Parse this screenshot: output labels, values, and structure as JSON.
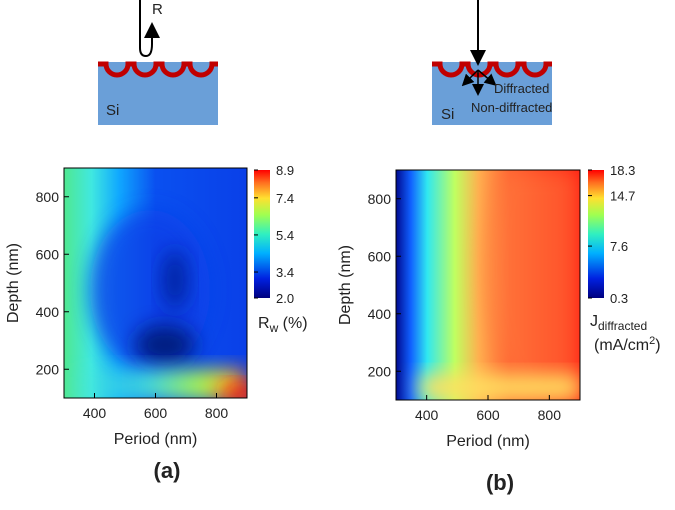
{
  "chart_data": [
    {
      "type": "contour",
      "panel_label": "(a)",
      "xlabel": "Period (nm)",
      "ylabel": "Depth (nm)",
      "xlim": [
        300,
        900
      ],
      "ylim": [
        100,
        900
      ],
      "xticks": [
        400,
        600,
        800
      ],
      "yticks": [
        200,
        400,
        600,
        800
      ],
      "clim": [
        2.0,
        8.9
      ],
      "cticks": [
        {
          "value": 2.0,
          "label": "2.0"
        },
        3.4,
        5.4,
        7.4,
        8.9
      ],
      "colorbar_label": {
        "main": "R",
        "sub": "w",
        "rest": " (%)"
      },
      "schematic": {
        "beam": "R",
        "substrate": "Si"
      }
    },
    {
      "type": "contour",
      "panel_label": "(b)",
      "xlabel": "Period (nm)",
      "ylabel": "Depth (nm)",
      "xlim": [
        300,
        900
      ],
      "ylim": [
        100,
        900
      ],
      "xticks": [
        400,
        600,
        800
      ],
      "yticks": [
        200,
        400,
        600,
        800
      ],
      "clim": [
        0.3,
        18.3
      ],
      "cticks": [
        0.3,
        7.6,
        14.7,
        18.3
      ],
      "colorbar_label": {
        "main": "J",
        "sub": "diffracted",
        "line2": "(mA/cm",
        "sup": "2",
        "close": ")"
      },
      "schematic": {
        "substrate": "Si",
        "diffracted": "Diffracted",
        "non_diffracted": "Non-diffracted"
      }
    }
  ]
}
